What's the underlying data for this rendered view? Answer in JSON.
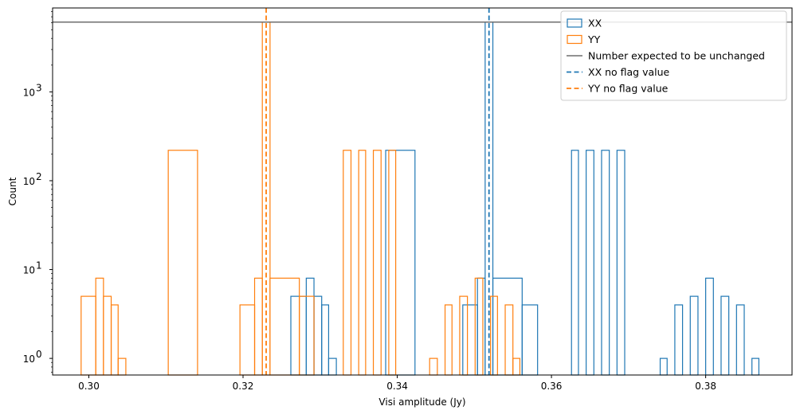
{
  "chart_data": {
    "type": "histogram",
    "xlabel": "Visi amplitude (Jy)",
    "ylabel": "Count",
    "yscale": "log",
    "xlim": [
      0.2953,
      0.3912
    ],
    "ylim": [
      0.65,
      8800
    ],
    "x_ticks": [
      {
        "value": 0.3,
        "label": "0.30"
      },
      {
        "value": 0.32,
        "label": "0.32"
      },
      {
        "value": 0.34,
        "label": "0.34"
      },
      {
        "value": 0.36,
        "label": "0.36"
      },
      {
        "value": 0.38,
        "label": "0.38"
      }
    ],
    "y_ticks": [
      {
        "value": 1,
        "base": "10",
        "exp": "0"
      },
      {
        "value": 10,
        "base": "10",
        "exp": "1"
      },
      {
        "value": 100,
        "base": "10",
        "exp": "2"
      },
      {
        "value": 1000,
        "base": "10",
        "exp": "3"
      }
    ],
    "legend_position": "top-right",
    "series": [
      {
        "name": "XX",
        "kind": "step-histogram",
        "color": "#1f77b4",
        "bins": [
          [
            0.3262,
            0.3282,
            5
          ],
          [
            0.3282,
            0.3292,
            8
          ],
          [
            0.3292,
            0.3302,
            5
          ],
          [
            0.3302,
            0.3311,
            4
          ],
          [
            0.3311,
            0.3321,
            1
          ],
          [
            0.3385,
            0.3423,
            220
          ],
          [
            0.3485,
            0.3504,
            4
          ],
          [
            0.3504,
            0.3514,
            8
          ],
          [
            0.3514,
            0.3524,
            6100
          ],
          [
            0.3524,
            0.3562,
            8
          ],
          [
            0.3562,
            0.3582,
            4
          ],
          [
            0.3626,
            0.3635,
            220
          ],
          [
            0.3645,
            0.3655,
            220
          ],
          [
            0.3665,
            0.3675,
            220
          ],
          [
            0.3685,
            0.3695,
            220
          ],
          [
            0.3741,
            0.375,
            1
          ],
          [
            0.376,
            0.377,
            4
          ],
          [
            0.378,
            0.379,
            5
          ],
          [
            0.38,
            0.381,
            8
          ],
          [
            0.382,
            0.383,
            5
          ],
          [
            0.384,
            0.385,
            4
          ],
          [
            0.386,
            0.3869,
            1
          ]
        ]
      },
      {
        "name": "YY",
        "kind": "step-histogram",
        "color": "#ff7f0e",
        "bins": [
          [
            0.299,
            0.3009,
            5
          ],
          [
            0.3009,
            0.3019,
            8
          ],
          [
            0.3019,
            0.3029,
            5
          ],
          [
            0.3029,
            0.3038,
            4
          ],
          [
            0.3038,
            0.3048,
            1
          ],
          [
            0.3103,
            0.3141,
            220
          ],
          [
            0.3196,
            0.3215,
            4
          ],
          [
            0.3215,
            0.3225,
            8
          ],
          [
            0.3225,
            0.3235,
            6100
          ],
          [
            0.3235,
            0.3273,
            8
          ],
          [
            0.3273,
            0.3292,
            5
          ],
          [
            0.333,
            0.334,
            220
          ],
          [
            0.335,
            0.3359,
            220
          ],
          [
            0.3369,
            0.3379,
            220
          ],
          [
            0.3389,
            0.3398,
            220
          ],
          [
            0.3442,
            0.3452,
            1
          ],
          [
            0.3462,
            0.3471,
            4
          ],
          [
            0.3481,
            0.3491,
            5
          ],
          [
            0.3501,
            0.3511,
            8
          ],
          [
            0.3521,
            0.353,
            5
          ],
          [
            0.354,
            0.355,
            4
          ],
          [
            0.355,
            0.3559,
            1
          ]
        ]
      },
      {
        "name": "Number expected to be unchanged",
        "kind": "hline",
        "color": "#6e6e6e",
        "y": 6100
      },
      {
        "name": "XX no flag value",
        "kind": "vline-dashed",
        "color": "#1f77b4",
        "x": 0.3519
      },
      {
        "name": "YY no flag value",
        "kind": "vline-dashed",
        "color": "#ff7f0e",
        "x": 0.323
      }
    ]
  }
}
